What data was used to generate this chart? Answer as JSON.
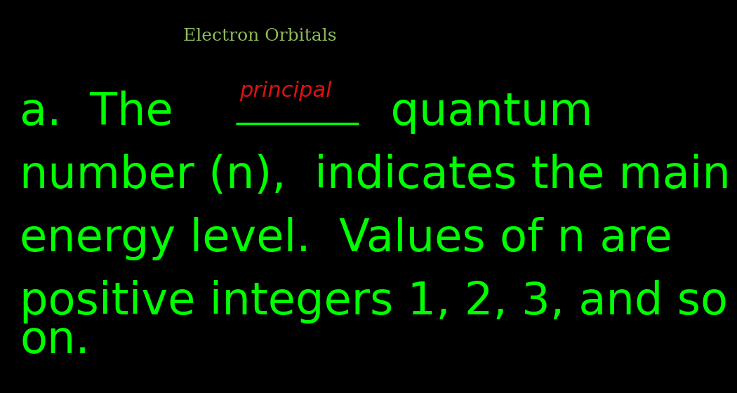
{
  "background_color": "#000000",
  "title_text": "Electron Orbitals",
  "title_color": "#8fbc5a",
  "title_fontsize": 18,
  "main_text_color": "#00ff00",
  "main_fontsize": 46,
  "principal_color": "#dd1111",
  "principal_fontsize": 22,
  "line1_part1": "a.  The ",
  "line1_part2": "  quantum",
  "line2": "number (n),  indicates the main",
  "line3": "energy level.  Values of n are",
  "line4": "positive integers 1, 2, 3, and so",
  "line5": "on.",
  "principal_label": "principal"
}
